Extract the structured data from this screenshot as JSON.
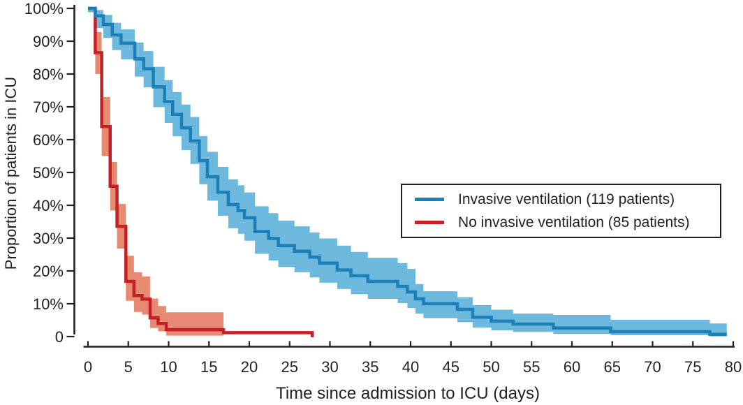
{
  "colors": {
    "background": "#ffffff",
    "axis": "#231f20",
    "text": "#231f20",
    "invasive_line": "#1b7fb8",
    "invasive_band": "#6cb9dd",
    "no_invasive_line": "#c42026",
    "no_invasive_band": "#e68a72"
  },
  "chart_data": {
    "type": "line",
    "subtype": "kaplan-meier-step-with-confidence-bands",
    "title": "",
    "xlabel": "Time since admission to ICU (days)",
    "ylabel": "Proportion of patients in ICU",
    "xlim": [
      0,
      80
    ],
    "ylim": [
      0,
      100
    ],
    "grid": false,
    "x_ticks": [
      0,
      5,
      10,
      15,
      20,
      25,
      30,
      35,
      40,
      45,
      50,
      55,
      60,
      65,
      70,
      75,
      80
    ],
    "y_ticks": [
      {
        "value": 100,
        "label": "100%"
      },
      {
        "value": 90,
        "label": "90%"
      },
      {
        "value": 80,
        "label": "80%"
      },
      {
        "value": 70,
        "label": "70%"
      },
      {
        "value": 60,
        "label": "60%"
      },
      {
        "value": 50,
        "label": "50%"
      },
      {
        "value": 40,
        "label": "40%"
      },
      {
        "value": 30,
        "label": "30%"
      },
      {
        "value": 20,
        "label": "20%"
      },
      {
        "value": 10,
        "label": "10%"
      },
      {
        "value": 0,
        "label": "0"
      }
    ],
    "legend": {
      "position": "middle-right",
      "border": true
    },
    "steps_format": [
      "day",
      "proportion_pct",
      "ci_upper_pct",
      "ci_lower_pct"
    ],
    "series": [
      {
        "name": "invasive-ventilation",
        "label": "Invasive ventilation (119 patients)",
        "color": "#1b7fb8",
        "band_color": "#6cb9dd",
        "end_day": 79.2,
        "steps": [
          [
            0,
            100,
            100,
            98.8
          ],
          [
            0.9,
            97.7,
            99.5,
            94.0
          ],
          [
            1.9,
            95.1,
            98.0,
            91.0
          ],
          [
            3.0,
            91.9,
            95.6,
            87.3
          ],
          [
            4.1,
            89.4,
            93.6,
            84.5
          ],
          [
            5.8,
            84.6,
            89.6,
            79.2
          ],
          [
            6.9,
            81.6,
            87.0,
            75.9
          ],
          [
            8.1,
            76.1,
            82.2,
            69.9
          ],
          [
            9.5,
            71.6,
            78.1,
            65.1
          ],
          [
            10.5,
            67.7,
            74.5,
            61.0
          ],
          [
            11.6,
            63.6,
            70.7,
            56.8
          ],
          [
            12.7,
            59.6,
            66.9,
            52.6
          ],
          [
            13.8,
            53.6,
            61.1,
            46.4
          ],
          [
            14.8,
            48.7,
            56.3,
            41.4
          ],
          [
            16.1,
            44.0,
            51.7,
            36.8
          ],
          [
            17.4,
            40.2,
            47.9,
            33.0
          ],
          [
            18.6,
            38.4,
            46.1,
            31.3
          ],
          [
            19.4,
            36.2,
            43.9,
            29.2
          ],
          [
            20.7,
            32.0,
            39.7,
            25.2
          ],
          [
            22.4,
            29.9,
            37.6,
            23.2
          ],
          [
            23.6,
            27.7,
            35.3,
            21.2
          ],
          [
            25.6,
            26.0,
            33.6,
            19.6
          ],
          [
            27.5,
            24.2,
            31.7,
            18.0
          ],
          [
            28.7,
            22.4,
            29.9,
            16.4
          ],
          [
            30.9,
            20.3,
            27.7,
            14.5
          ],
          [
            32.6,
            18.5,
            25.8,
            12.9
          ],
          [
            34.7,
            16.8,
            24.0,
            11.5
          ],
          [
            38.4,
            15.3,
            22.4,
            10.2
          ],
          [
            39.6,
            13.6,
            20.6,
            8.7
          ],
          [
            40.6,
            11.5,
            16.0,
            7.0
          ],
          [
            41.6,
            10.0,
            13.8,
            5.6
          ],
          [
            45.8,
            8.3,
            12.0,
            4.4
          ],
          [
            47.7,
            5.9,
            9.6,
            2.7
          ],
          [
            50.0,
            4.7,
            8.2,
            1.9
          ],
          [
            52.7,
            3.8,
            7.0,
            1.4
          ],
          [
            57.7,
            2.6,
            6.6,
            0.8
          ],
          [
            64.8,
            1.5,
            5.1,
            0.4
          ],
          [
            77.1,
            0.7,
            4.0,
            0.05
          ]
        ]
      },
      {
        "name": "no-invasive-ventilation",
        "label": "No invasive ventilation (85 patients)",
        "color": "#c42026",
        "band_color": "#e68a72",
        "end_day": 28.0,
        "band_end_day": 16.8,
        "steps": [
          [
            0,
            100,
            null,
            null
          ],
          [
            0.9,
            86.5,
            92.8,
            80.0
          ],
          [
            1.7,
            64.0,
            73.0,
            55.0
          ],
          [
            2.75,
            45.8,
            53.2,
            38.4
          ],
          [
            3.6,
            33.6,
            40.4,
            26.8
          ],
          [
            4.7,
            16.8,
            24.6,
            10.9
          ],
          [
            5.7,
            12.5,
            19.6,
            7.5
          ],
          [
            6.7,
            11.4,
            18.3,
            6.7
          ],
          [
            7.7,
            5.7,
            11.6,
            2.6
          ],
          [
            8.7,
            4.0,
            9.3,
            1.6
          ],
          [
            9.7,
            2.1,
            7.4,
            0.3
          ],
          [
            16.8,
            1.2,
            null,
            null
          ],
          [
            27.8,
            0.3,
            null,
            null
          ]
        ]
      }
    ]
  }
}
